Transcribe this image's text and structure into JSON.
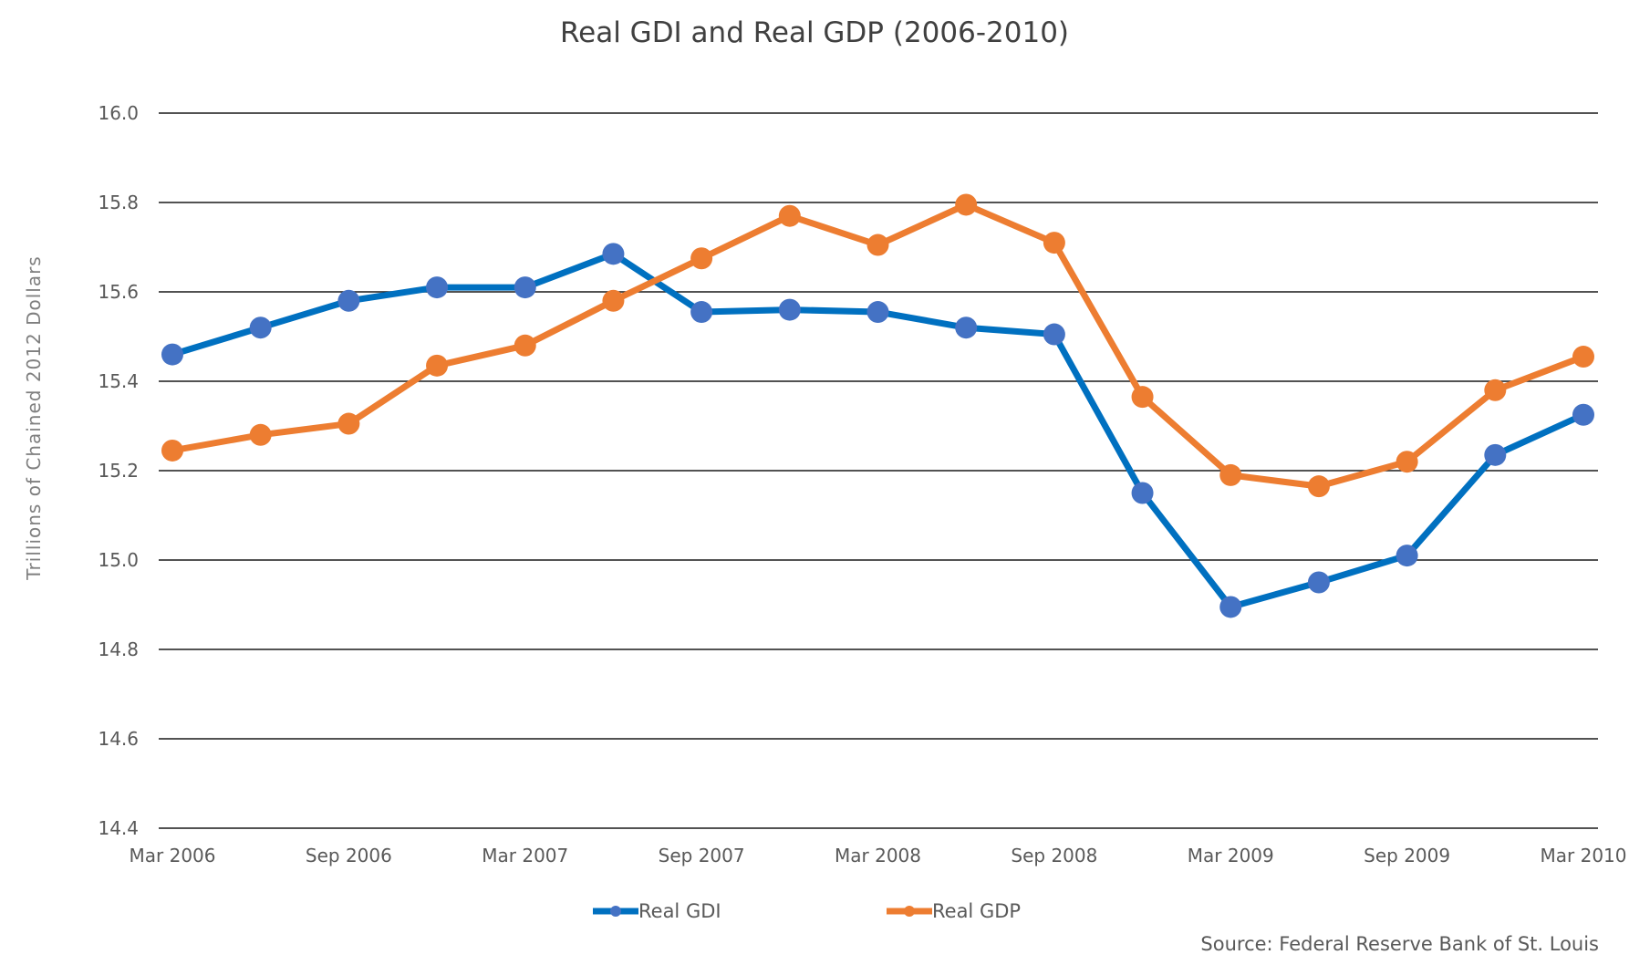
{
  "chart_data": {
    "type": "line",
    "title": "Real GDI and Real GDP (2006-2010)",
    "xlabel": "",
    "ylabel": "Trillions  of Chained  2012  Dollars",
    "ylim": [
      14.4,
      16.0
    ],
    "yticks": [
      "16.0",
      "15.8",
      "15.6",
      "15.4",
      "15.2",
      "15.0",
      "14.8",
      "14.6",
      "14.4"
    ],
    "x": [
      "Mar 2006",
      "Jun 2006",
      "Sep 2006",
      "Dec 2006",
      "Mar 2007",
      "Jun 2007",
      "Sep 2007",
      "Dec 2007",
      "Mar 2008",
      "Jun 2008",
      "Sep 2008",
      "Dec 2008",
      "Mar 2009",
      "Jun 2009",
      "Sep 2009",
      "Dec 2009",
      "Mar 2010"
    ],
    "xtick_labels": [
      "Mar 2006",
      "Sep 2006",
      "Mar 2007",
      "Sep 2007",
      "Mar 2008",
      "Sep 2008",
      "Mar 2009",
      "Sep 2009",
      "Mar 2010"
    ],
    "grid": true,
    "legend_position": "bottom",
    "series": [
      {
        "name": "Real GDI",
        "line_color": "#0070C0",
        "marker_color": "#4472C4",
        "values": [
          15.46,
          15.52,
          15.58,
          15.61,
          15.61,
          15.685,
          15.555,
          15.56,
          15.555,
          15.52,
          15.505,
          15.15,
          14.895,
          14.95,
          15.01,
          15.235,
          15.325
        ]
      },
      {
        "name": "Real GDP",
        "line_color": "#ED7D31",
        "marker_color": "#ED7D31",
        "values": [
          15.245,
          15.28,
          15.305,
          15.435,
          15.48,
          15.58,
          15.675,
          15.77,
          15.705,
          15.795,
          15.71,
          15.365,
          15.19,
          15.165,
          15.22,
          15.38,
          15.455
        ]
      }
    ],
    "source": "Source: Federal Reserve Bank of St. Louis"
  }
}
